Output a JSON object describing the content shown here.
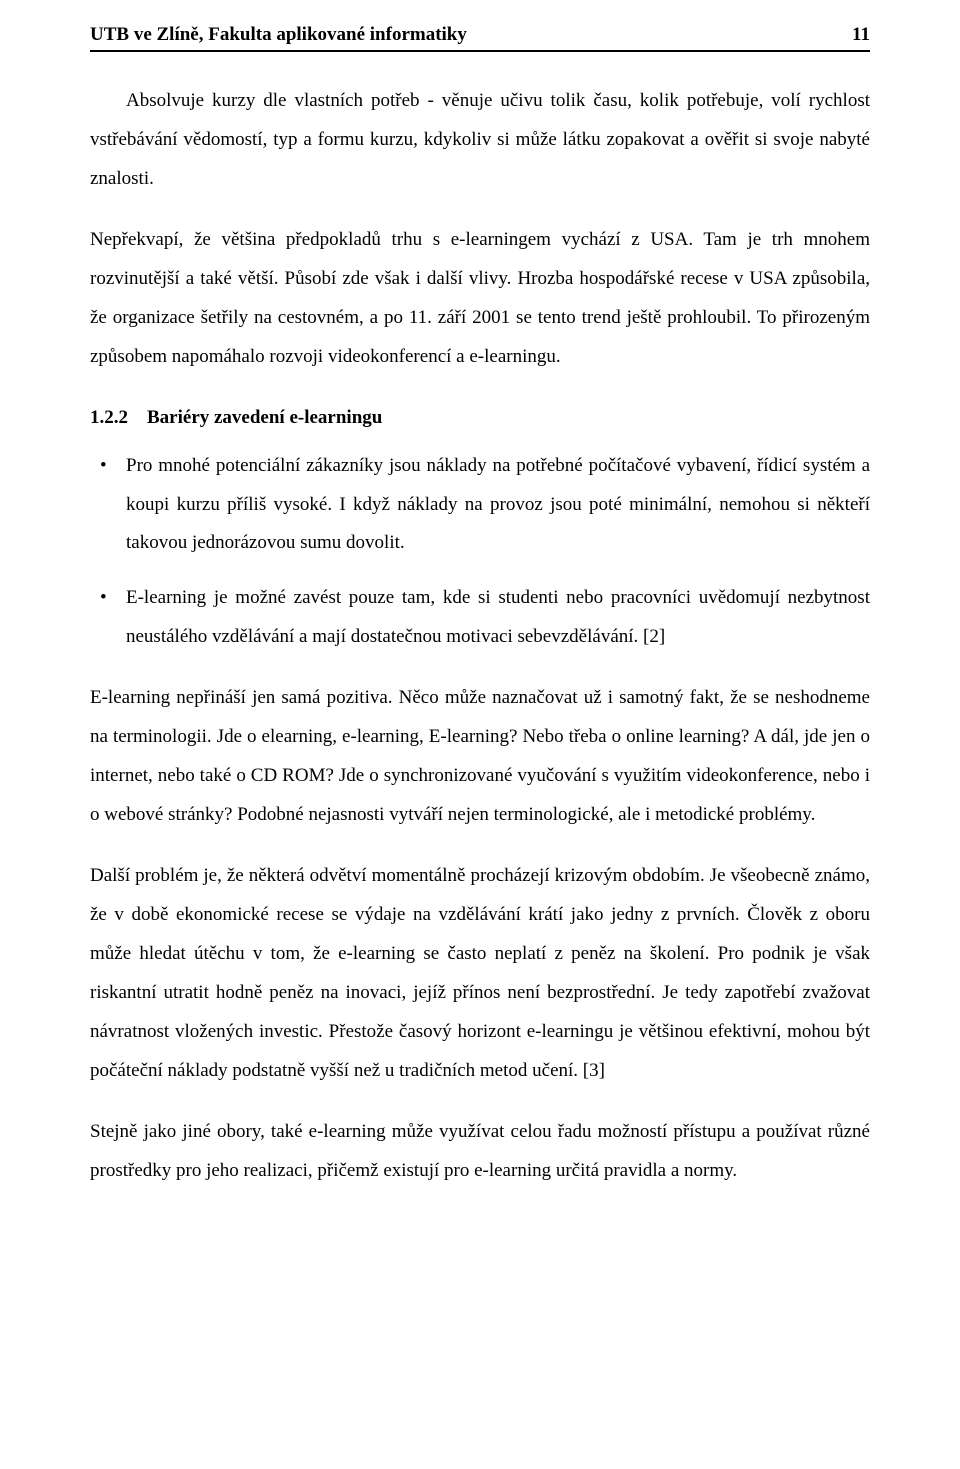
{
  "header": {
    "left": "UTB ve Zlíně, Fakulta aplikované informatiky",
    "pageNumber": "11"
  },
  "paras": {
    "p1": "Absolvuje kurzy dle vlastních potřeb - věnuje učivu tolik času, kolik potřebuje, volí rychlost vstřebávání vědomostí, typ a formu kurzu, kdykoliv si může látku zopakovat a ověřit si svoje nabyté znalosti.",
    "p2": "Nepřekvapí, že většina předpokladů trhu s e-learningem vychází z USA. Tam je trh mnohem rozvinutější a také větší. Působí zde však i další vlivy. Hrozba hospodářské recese v USA způsobila, že organizace šetřily na cestovném, a po 11. září 2001 se tento trend ještě prohloubil. To přirozeným způsobem napomáhalo rozvoji videokonferencí a e-learningu.",
    "p3": "E-learning nepřináší jen samá pozitiva. Něco může naznačovat už i samotný fakt, že se neshodneme na terminologii. Jde o elearning, e-learning, E-learning? Nebo třeba o online learning? A dál, jde jen o internet, nebo také o CD ROM? Jde o synchronizované vyučování s využitím videokonference, nebo i o webové stránky? Podobné nejasnosti vytváří nejen terminologické, ale i metodické problémy.",
    "p4": "Další problém je, že některá odvětví momentálně procházejí krizovým obdobím. Je všeobecně známo, že v době ekonomické recese se výdaje na vzdělávání krátí jako jedny z prvních. Člověk z oboru může hledat útěchu v tom, že e-learning se často neplatí z peněz na školení. Pro podnik je však riskantní utratit hodně peněz na inovaci, jejíž přínos není bezprostřední. Je tedy zapotřebí zvažovat návratnost vložených investic. Přestože časový horizont e-learningu je většinou efektivní, mohou být počáteční náklady podstatně vyšší než u tradičních metod učení. [3]",
    "p5": "Stejně jako jiné obory, také e-learning může využívat celou řadu možností přístupu a používat různé prostředky pro jeho realizaci, přičemž existují pro e-learning určitá pravidla a normy."
  },
  "section": {
    "number": "1.2.2",
    "title": "Bariéry zavedení e-learningu"
  },
  "bullets": {
    "b1": "Pro mnohé potenciální zákazníky jsou náklady na potřebné počítačové vybavení, řídicí systém a koupi kurzu příliš vysoké. I když náklady na provoz jsou poté minimální, nemohou si někteří takovou jednorázovou sumu dovolit.",
    "b2": "E-learning je možné zavést pouze tam, kde si studenti nebo pracovníci uvědomují nezbytnost neustálého vzdělávání a mají dostatečnou motivaci sebevzdělávání. [2]"
  }
}
